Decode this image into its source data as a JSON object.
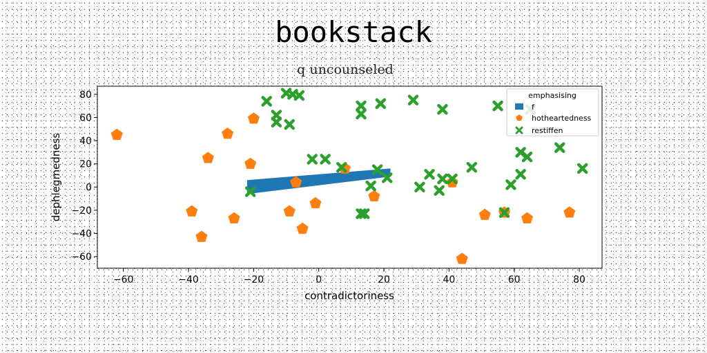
{
  "chart_data": {
    "type": "scatter",
    "title": "bookstack",
    "subtitle": "q uncounseled",
    "xlabel": "contradictoriness",
    "ylabel": "dephlegmedness",
    "xlim": [
      -68,
      87
    ],
    "ylim": [
      -70,
      87
    ],
    "xticks": [
      -60,
      -40,
      -20,
      0,
      20,
      40,
      60,
      80
    ],
    "yticks": [
      -60,
      -40,
      -20,
      0,
      20,
      40,
      60,
      80
    ],
    "grid": false,
    "legend": {
      "title": "emphasising",
      "placement": "top-right",
      "entries": [
        "f",
        "hotheartedness",
        "restiffen"
      ]
    },
    "colors": {
      "f": "#1f77b4",
      "hotheartedness": "#ff7f0e",
      "restiffen": "#2ca02c"
    },
    "series": [
      {
        "name": "f",
        "kind": "band",
        "x": [
          -22,
          22
        ],
        "y_lower": [
          -6,
          9
        ],
        "y_upper": [
          6,
          16
        ]
      },
      {
        "name": "hotheartedness",
        "marker": "pentagon",
        "points": [
          [
            -62,
            45
          ],
          [
            -28,
            46
          ],
          [
            -20,
            59
          ],
          [
            -34,
            25
          ],
          [
            -21,
            20
          ],
          [
            -39,
            -21
          ],
          [
            -36,
            -43
          ],
          [
            -26,
            -27
          ],
          [
            -9,
            -21
          ],
          [
            -7,
            4
          ],
          [
            -5,
            -36
          ],
          [
            -1,
            -14
          ],
          [
            8,
            16
          ],
          [
            17,
            -8
          ],
          [
            41,
            4
          ],
          [
            44,
            -62
          ],
          [
            51,
            -24
          ],
          [
            57,
            -22
          ],
          [
            64,
            -27
          ],
          [
            77,
            -22
          ]
        ]
      },
      {
        "name": "restiffen",
        "marker": "x",
        "points": [
          [
            -16,
            74
          ],
          [
            -10,
            81
          ],
          [
            -8,
            80
          ],
          [
            -6,
            79
          ],
          [
            -13,
            62
          ],
          [
            -13,
            56
          ],
          [
            -9,
            54
          ],
          [
            -21,
            -4
          ],
          [
            -2,
            24
          ],
          [
            2,
            24
          ],
          [
            7,
            17
          ],
          [
            13,
            70
          ],
          [
            13,
            63
          ],
          [
            19,
            72
          ],
          [
            29,
            75
          ],
          [
            38,
            67
          ],
          [
            55,
            70
          ],
          [
            65,
            67
          ],
          [
            62,
            30
          ],
          [
            64,
            26
          ],
          [
            74,
            34
          ],
          [
            81,
            16
          ],
          [
            47,
            17
          ],
          [
            62,
            11
          ],
          [
            59,
            2
          ],
          [
            57,
            -22
          ],
          [
            34,
            11
          ],
          [
            38,
            7
          ],
          [
            41,
            7
          ],
          [
            31,
            0
          ],
          [
            37,
            -3
          ],
          [
            16,
            1
          ],
          [
            18,
            15
          ],
          [
            21,
            8
          ],
          [
            13,
            -23
          ],
          [
            14,
            -23
          ]
        ]
      }
    ]
  }
}
